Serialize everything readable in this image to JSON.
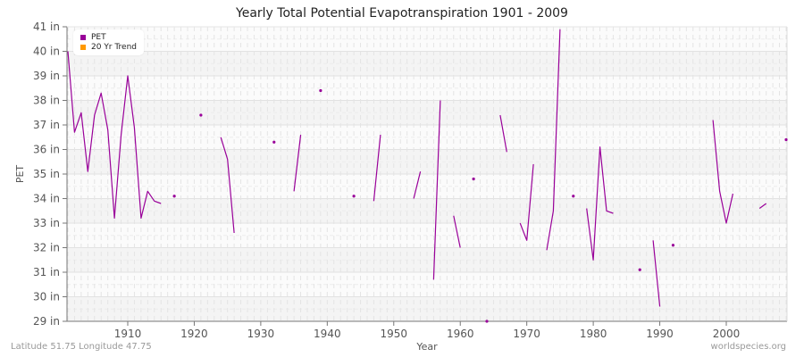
{
  "title": "Yearly Total Potential Evapotranspiration 1901 - 2009",
  "footer": {
    "location": "Latitude 51.75 Longitude 47.75",
    "source": "worldspecies.org"
  },
  "legend": {
    "items": [
      {
        "label": "PET",
        "color": "#990099"
      },
      {
        "label": "20 Yr Trend",
        "color": "#ff9900"
      }
    ]
  },
  "chart_data": {
    "type": "line",
    "title": "Yearly Total Potential Evapotranspiration 1901 - 2009",
    "xlabel": "Year",
    "ylabel": "PET",
    "xlim": [
      1901,
      2009
    ],
    "ylim": [
      29,
      41
    ],
    "x_ticks": [
      1910,
      1920,
      1930,
      1940,
      1950,
      1960,
      1970,
      1980,
      1990,
      2000
    ],
    "y_ticks": [
      "29 in",
      "30 in",
      "31 in",
      "32 in",
      "33 in",
      "34 in",
      "35 in",
      "36 in",
      "37 in",
      "38 in",
      "39 in",
      "40 in",
      "41 in"
    ],
    "grid": true,
    "legend_position": "top-left",
    "series": [
      {
        "name": "PET",
        "color": "#990099",
        "unit": "in",
        "points": [
          [
            1901,
            40.0
          ],
          [
            1902,
            36.7
          ],
          [
            1903,
            37.5
          ],
          [
            1904,
            35.1
          ],
          [
            1905,
            37.4
          ],
          [
            1906,
            38.3
          ],
          [
            1907,
            36.8
          ],
          [
            1908,
            33.2
          ],
          [
            1909,
            36.6
          ],
          [
            1910,
            39.0
          ],
          [
            1911,
            36.9
          ],
          [
            1912,
            33.2
          ],
          [
            1913,
            34.3
          ],
          [
            1914,
            33.9
          ],
          [
            1915,
            33.8
          ],
          [
            1917,
            34.1
          ],
          [
            1921,
            37.4
          ],
          [
            1924,
            36.5
          ],
          [
            1925,
            35.6
          ],
          [
            1926,
            32.6
          ],
          [
            1932,
            36.3
          ],
          [
            1935,
            34.3
          ],
          [
            1936,
            36.6
          ],
          [
            1939,
            38.4
          ],
          [
            1944,
            34.1
          ],
          [
            1947,
            33.9
          ],
          [
            1948,
            36.6
          ],
          [
            1953,
            34.0
          ],
          [
            1954,
            35.1
          ],
          [
            1956,
            30.7
          ],
          [
            1957,
            38.0
          ],
          [
            1959,
            33.3
          ],
          [
            1960,
            32.0
          ],
          [
            1962,
            34.8
          ],
          [
            1964,
            29.0
          ],
          [
            1966,
            37.4
          ],
          [
            1967,
            35.9
          ],
          [
            1969,
            33.0
          ],
          [
            1970,
            32.3
          ],
          [
            1971,
            35.4
          ],
          [
            1973,
            31.9
          ],
          [
            1974,
            33.5
          ],
          [
            1975,
            40.9
          ],
          [
            1977,
            34.1
          ],
          [
            1979,
            33.6
          ],
          [
            1980,
            31.5
          ],
          [
            1981,
            36.1
          ],
          [
            1982,
            33.5
          ],
          [
            1983,
            33.4
          ],
          [
            1987,
            31.1
          ],
          [
            1989,
            32.3
          ],
          [
            1990,
            29.6
          ],
          [
            1992,
            32.1
          ],
          [
            1998,
            37.2
          ],
          [
            1999,
            34.3
          ],
          [
            2000,
            33.0
          ],
          [
            2001,
            34.2
          ],
          [
            2005,
            33.6
          ],
          [
            2006,
            33.8
          ],
          [
            2009,
            36.4
          ]
        ]
      },
      {
        "name": "20 Yr Trend",
        "color": "#ff9900",
        "points": []
      }
    ]
  }
}
